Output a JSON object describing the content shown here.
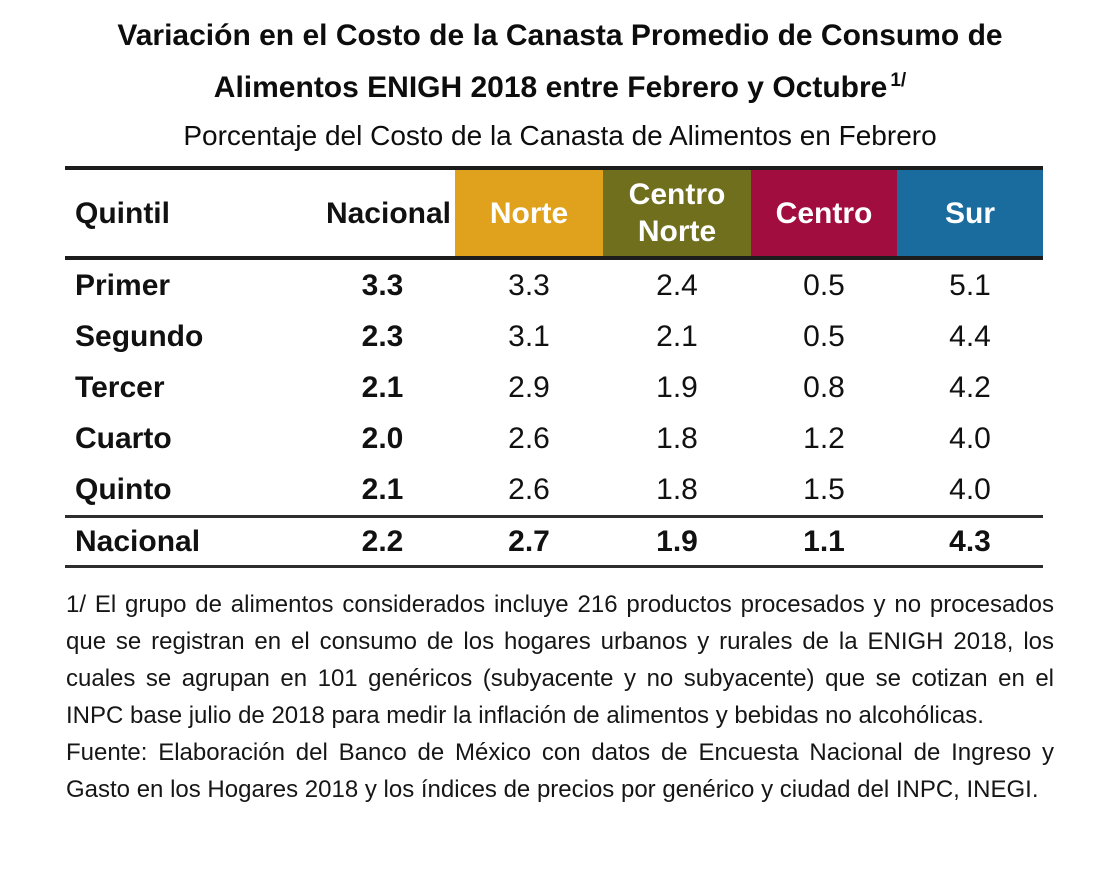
{
  "title": {
    "line1": "Variación en el Costo de la Canasta Promedio de Consumo de",
    "line2": "Alimentos ENIGH 2018 entre Febrero y Octubre",
    "superscript": "1/",
    "subtitle": "Porcentaje del Costo de la Canasta de Alimentos en Febrero"
  },
  "table": {
    "columns": [
      {
        "label": "Quintil",
        "bg": "#FFFFFF",
        "text_color": "#111111"
      },
      {
        "label": "Nacional",
        "bg": "#FFFFFF",
        "text_color": "#111111"
      },
      {
        "label": "Norte",
        "bg": "#E0A21C",
        "text_color": "#FFFFFF"
      },
      {
        "label": "Centro Norte",
        "bg": "#6F6F1E",
        "text_color": "#FFFFFF"
      },
      {
        "label": "Centro",
        "bg": "#A20D40",
        "text_color": "#FFFFFF"
      },
      {
        "label": "Sur",
        "bg": "#1B6C9E",
        "text_color": "#FFFFFF"
      }
    ],
    "rows": [
      {
        "label": "Primer",
        "values": [
          "3.3",
          "3.3",
          "2.4",
          "0.5",
          "5.1"
        ]
      },
      {
        "label": "Segundo",
        "values": [
          "2.3",
          "3.1",
          "2.1",
          "0.5",
          "4.4"
        ]
      },
      {
        "label": "Tercer",
        "values": [
          "2.1",
          "2.9",
          "1.9",
          "0.8",
          "4.2"
        ]
      },
      {
        "label": "Cuarto",
        "values": [
          "2.0",
          "2.6",
          "1.8",
          "1.2",
          "4.0"
        ]
      },
      {
        "label": "Quinto",
        "values": [
          "2.1",
          "2.6",
          "1.8",
          "1.5",
          "4.0"
        ]
      }
    ],
    "total_row": {
      "label": "Nacional",
      "values": [
        "2.2",
        "2.7",
        "1.9",
        "1.1",
        "4.3"
      ]
    }
  },
  "footnotes": {
    "note1": "1/ El grupo de alimentos considerados incluye 216 productos procesados y no procesados que se registran en el consumo de los hogares urbanos y rurales de la ENIGH 2018, los cuales se agrupan en 101 genéricos (subyacente y no subyacente) que se cotizan en el INPC base julio de 2018 para medir la inflación de alimentos y bebidas no alcohólicas.",
    "source": "Fuente: Elaboración del Banco de México con datos de Encuesta Nacional de Ingreso y Gasto en los Hogares 2018 y los índices de precios por genérico y ciudad del INPC, INEGI."
  },
  "chart_data": {
    "type": "table",
    "title": "Variación en el Costo de la Canasta Promedio de Consumo de Alimentos ENIGH 2018 entre Febrero y Octubre 1/",
    "subtitle": "Porcentaje del Costo de la Canasta de Alimentos en Febrero",
    "row_header": "Quintil",
    "categories": [
      "Primer",
      "Segundo",
      "Tercer",
      "Cuarto",
      "Quinto",
      "Nacional"
    ],
    "series": [
      {
        "name": "Nacional",
        "values": [
          3.3,
          2.3,
          2.1,
          2.0,
          2.1,
          2.2
        ]
      },
      {
        "name": "Norte",
        "values": [
          3.3,
          3.1,
          2.9,
          2.6,
          2.6,
          2.7
        ]
      },
      {
        "name": "Centro Norte",
        "values": [
          2.4,
          2.1,
          1.9,
          1.8,
          1.8,
          1.9
        ]
      },
      {
        "name": "Centro",
        "values": [
          0.5,
          0.5,
          0.8,
          1.2,
          1.5,
          1.1
        ]
      },
      {
        "name": "Sur",
        "values": [
          5.1,
          4.4,
          4.2,
          4.0,
          4.0,
          4.3
        ]
      }
    ],
    "series_colors": [
      "#FFFFFF",
      "#E0A21C",
      "#6F6F1E",
      "#A20D40",
      "#1B6C9E"
    ],
    "units": "percent"
  }
}
